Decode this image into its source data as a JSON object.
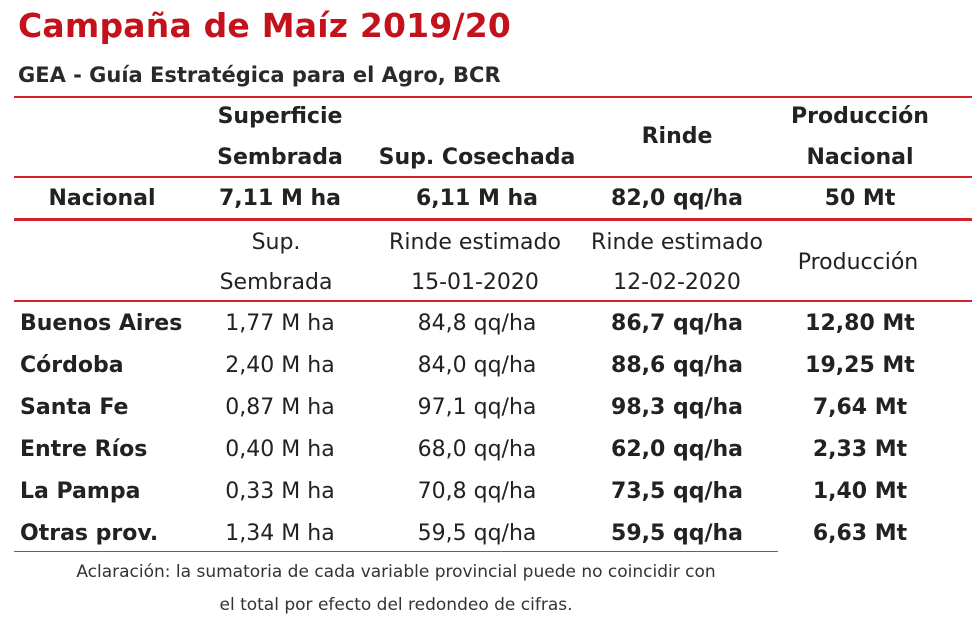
{
  "title": "Campaña de Maíz 2019/20",
  "subtitle": "GEA - Guía Estratégica para el Agro, BCR",
  "colors": {
    "title": "#c4121c",
    "rule": "#d2232a",
    "rule_bottom": "#4b6890"
  },
  "header1": {
    "superficie_line1": "Superficie",
    "superficie_line2": "Sembrada",
    "sup_cosechada": "Sup. Cosechada",
    "rinde": "Rinde",
    "produccion_line1": "Producción",
    "produccion_line2": "Nacional"
  },
  "nacional": {
    "label": "Nacional",
    "superficie": "7,11 M ha",
    "cosechada": "6,11 M ha",
    "rinde": "82,0 qq/ha",
    "produccion": "50 Mt"
  },
  "header2": {
    "sup_line1": "Sup.",
    "sup_line2": "Sembrada",
    "rinde1_line1": "Rinde estimado",
    "rinde1_line2": "15-01-2020",
    "rinde2_line1": "Rinde estimado",
    "rinde2_line2": "12-02-2020",
    "produccion": "Producción"
  },
  "rows": [
    {
      "provincia": "Buenos Aires",
      "sup": "1,77 M ha",
      "rinde1": "84,8 qq/ha",
      "rinde2": "86,7 qq/ha",
      "prod": "12,80 Mt"
    },
    {
      "provincia": "Córdoba",
      "sup": "2,40 M ha",
      "rinde1": "84,0 qq/ha",
      "rinde2": "88,6 qq/ha",
      "prod": "19,25 Mt"
    },
    {
      "provincia": "Santa Fe",
      "sup": "0,87 M ha",
      "rinde1": "97,1 qq/ha",
      "rinde2": "98,3 qq/ha",
      "prod": "7,64 Mt"
    },
    {
      "provincia": "Entre Ríos",
      "sup": "0,40 M ha",
      "rinde1": "68,0 qq/ha",
      "rinde2": "62,0 qq/ha",
      "prod": "2,33 Mt"
    },
    {
      "provincia": "La Pampa",
      "sup": "0,33 M ha",
      "rinde1": "70,8 qq/ha",
      "rinde2": "73,5 qq/ha",
      "prod": "1,40 Mt"
    },
    {
      "provincia": "Otras prov.",
      "sup": "1,34 M ha",
      "rinde1": "59,5 qq/ha",
      "rinde2": "59,5 qq/ha",
      "prod": "6,63 Mt"
    }
  ],
  "note": {
    "line1": "Aclaración: la sumatoria de cada variable provincial puede no coincidir con",
    "line2": "el total por efecto del redondeo de cifras."
  }
}
